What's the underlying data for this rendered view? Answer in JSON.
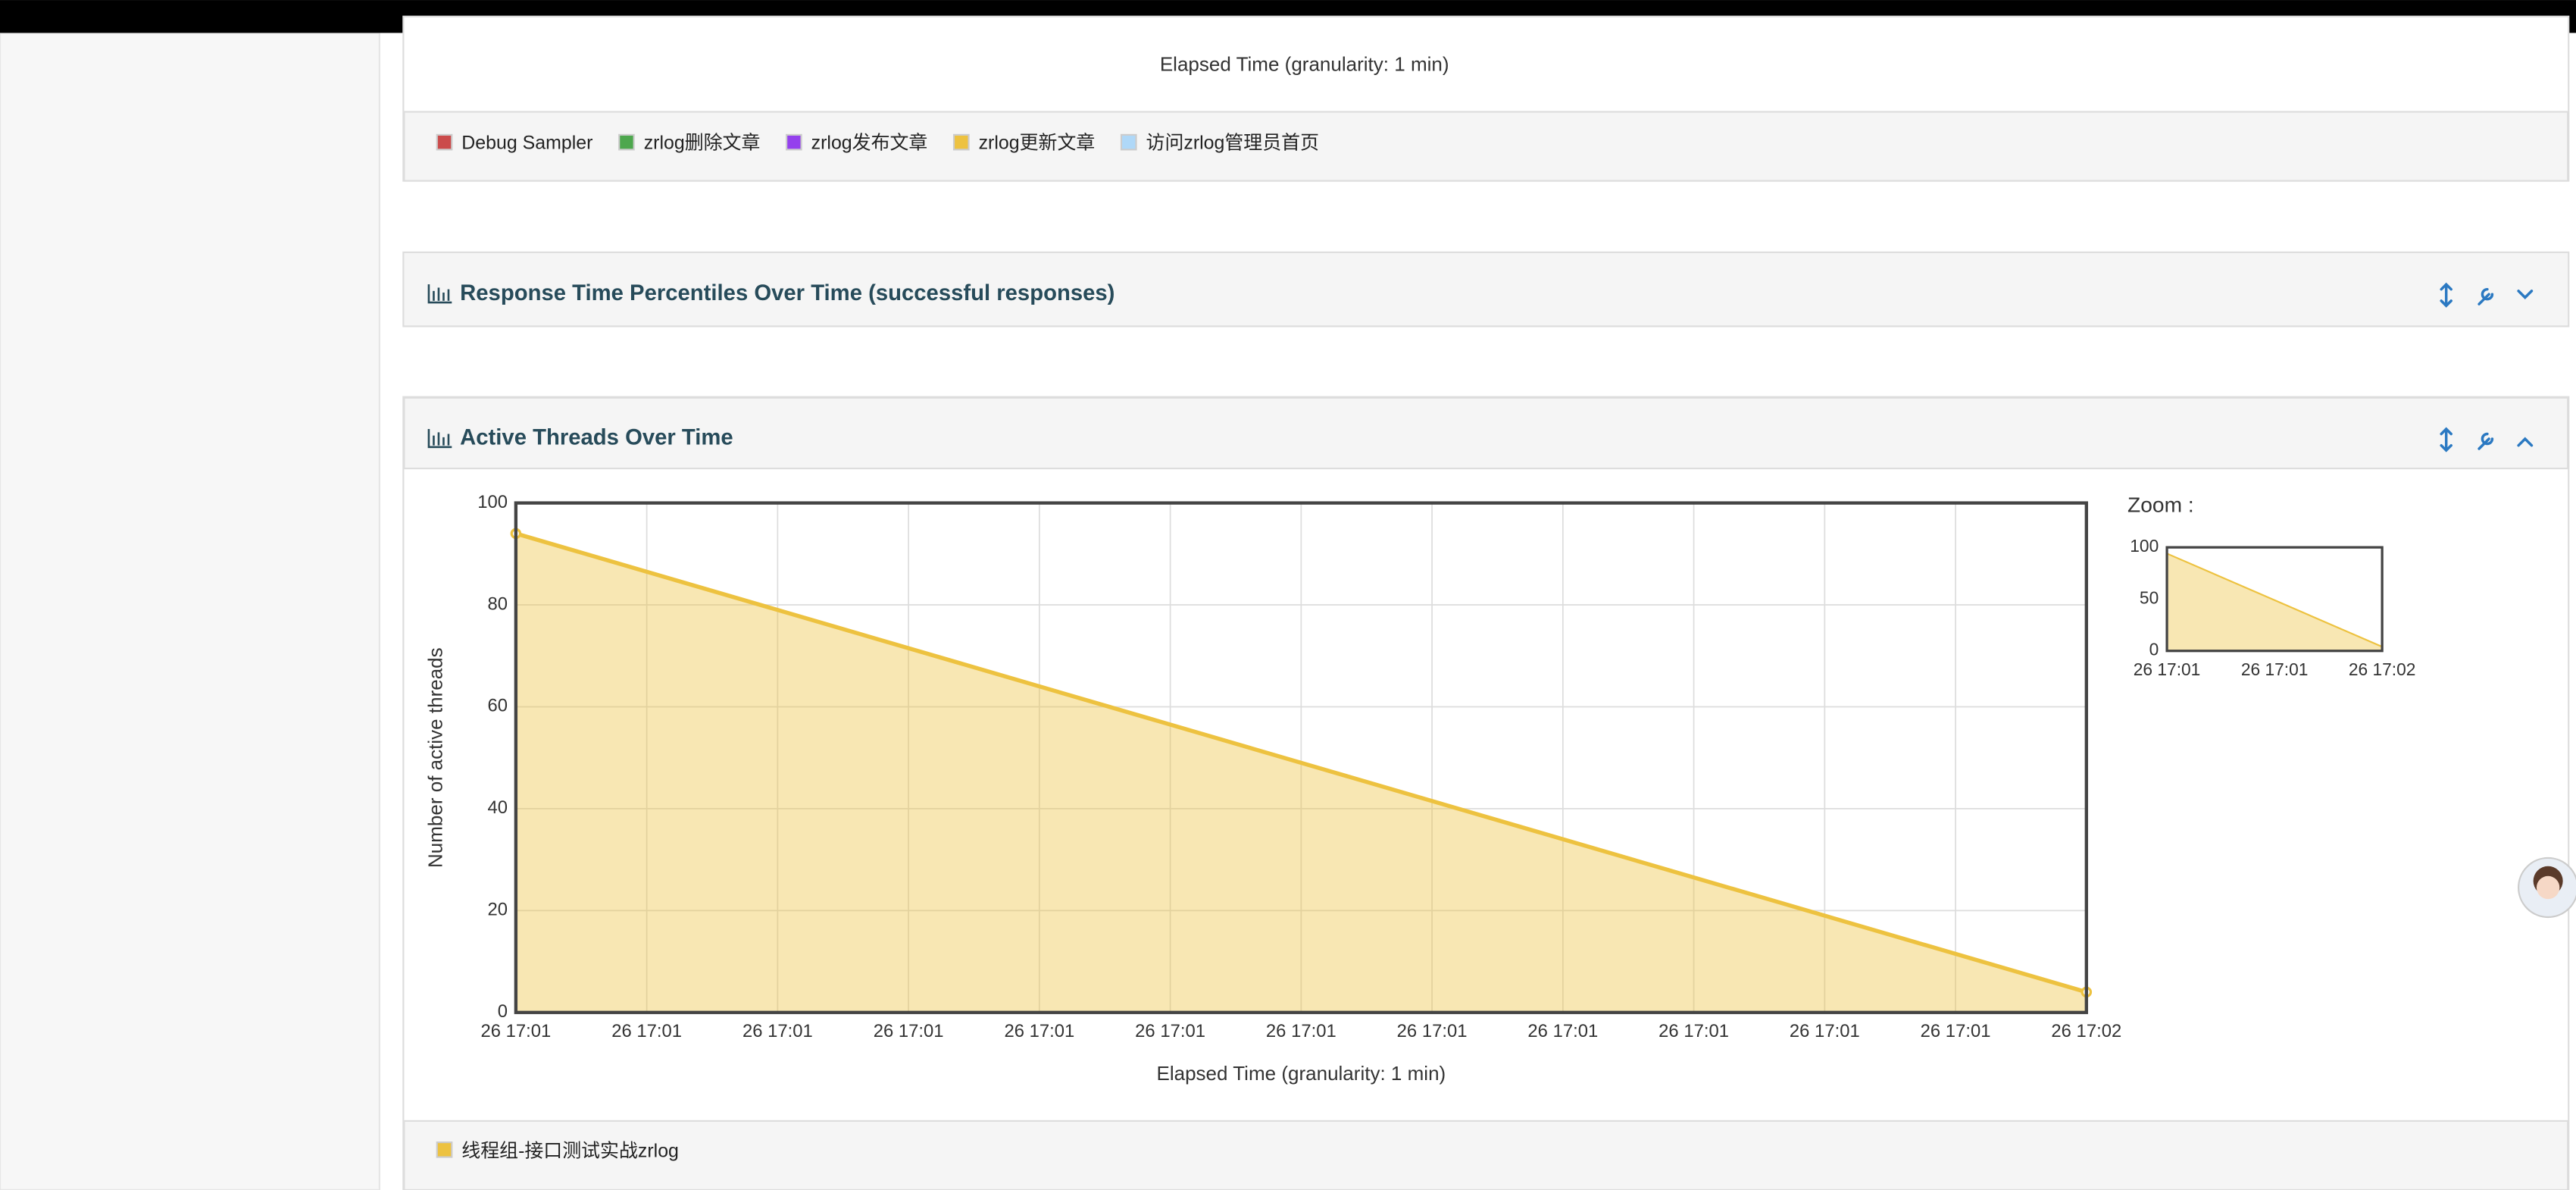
{
  "previous_panel": {
    "x_label": "Elapsed Time (granularity: 1 min)",
    "legend": [
      {
        "name": "Debug Sampler",
        "color": "#cb4b4b"
      },
      {
        "name": "zrlog删除文章",
        "color": "#4da74d"
      },
      {
        "name": "zrlog发布文章",
        "color": "#9440ed"
      },
      {
        "name": "zrlog更新文章",
        "color": "#edc240"
      },
      {
        "name": "访问zrlog管理员首页",
        "color": "#afd8f8"
      }
    ]
  },
  "panels": [
    {
      "title": "Response Time Percentiles Over Time (successful responses)"
    }
  ],
  "chart_data": [
    {
      "type": "area",
      "title": "Active Threads Over Time",
      "x_label": "Elapsed Time (granularity: 1 min)",
      "y_label": "Number of active threads",
      "x": [
        0,
        12
      ],
      "series": [
        {
          "name": "线程组-接口测试实战zrlog",
          "color": "#edc240",
          "values": [
            94,
            4
          ]
        }
      ],
      "xlim": [
        0,
        12
      ],
      "xticks": [
        {
          "value": 0,
          "label": "26 17:01"
        },
        {
          "value": 1,
          "label": "26 17:01"
        },
        {
          "value": 2,
          "label": "26 17:01"
        },
        {
          "value": 3,
          "label": "26 17:01"
        },
        {
          "value": 4,
          "label": "26 17:01"
        },
        {
          "value": 5,
          "label": "26 17:01"
        },
        {
          "value": 6,
          "label": "26 17:01"
        },
        {
          "value": 7,
          "label": "26 17:01"
        },
        {
          "value": 8,
          "label": "26 17:01"
        },
        {
          "value": 9,
          "label": "26 17:01"
        },
        {
          "value": 10,
          "label": "26 17:01"
        },
        {
          "value": 11,
          "label": "26 17:01"
        },
        {
          "value": 12,
          "label": "26 17:02"
        }
      ],
      "ylim": [
        0,
        100
      ],
      "yticks": [
        0,
        20,
        40,
        60,
        80,
        100
      ],
      "grid": true,
      "points": true
    },
    {
      "type": "area",
      "title": "Zoom :",
      "x": [
        0,
        12
      ],
      "series": [
        {
          "color": "#edc240",
          "values": [
            94,
            4
          ]
        }
      ],
      "xlim": [
        0,
        12
      ],
      "xticks": [
        {
          "value": 0,
          "label": "26 17:01"
        },
        {
          "value": 6,
          "label": "26 17:01"
        },
        {
          "value": 12,
          "label": "26 17:02"
        }
      ],
      "ylim": [
        0,
        100
      ],
      "yticks": [
        0,
        50,
        100
      ],
      "grid": false,
      "points": false
    }
  ]
}
